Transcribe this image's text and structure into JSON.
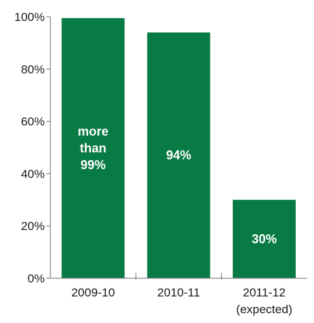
{
  "chart_data": {
    "type": "bar",
    "categories": [
      {
        "line1": "2009-10",
        "line2": ""
      },
      {
        "line1": "2010-11",
        "line2": ""
      },
      {
        "line1": "2011-12",
        "line2": "(expected)"
      }
    ],
    "values": [
      99.5,
      94,
      30
    ],
    "bar_labels": [
      [
        "more",
        "than",
        "99%"
      ],
      [
        "94%"
      ],
      [
        "30%"
      ]
    ],
    "y_ticks": [
      {
        "value": 0,
        "label": "0%"
      },
      {
        "value": 20,
        "label": "20%"
      },
      {
        "value": 40,
        "label": "40%"
      },
      {
        "value": 60,
        "label": "60%"
      },
      {
        "value": 80,
        "label": "80%"
      },
      {
        "value": 100,
        "label": "100%"
      }
    ],
    "ylim": [
      0,
      100
    ],
    "bar_color": "#087a44",
    "grid": false,
    "title": "",
    "xlabel": "",
    "ylabel": ""
  }
}
